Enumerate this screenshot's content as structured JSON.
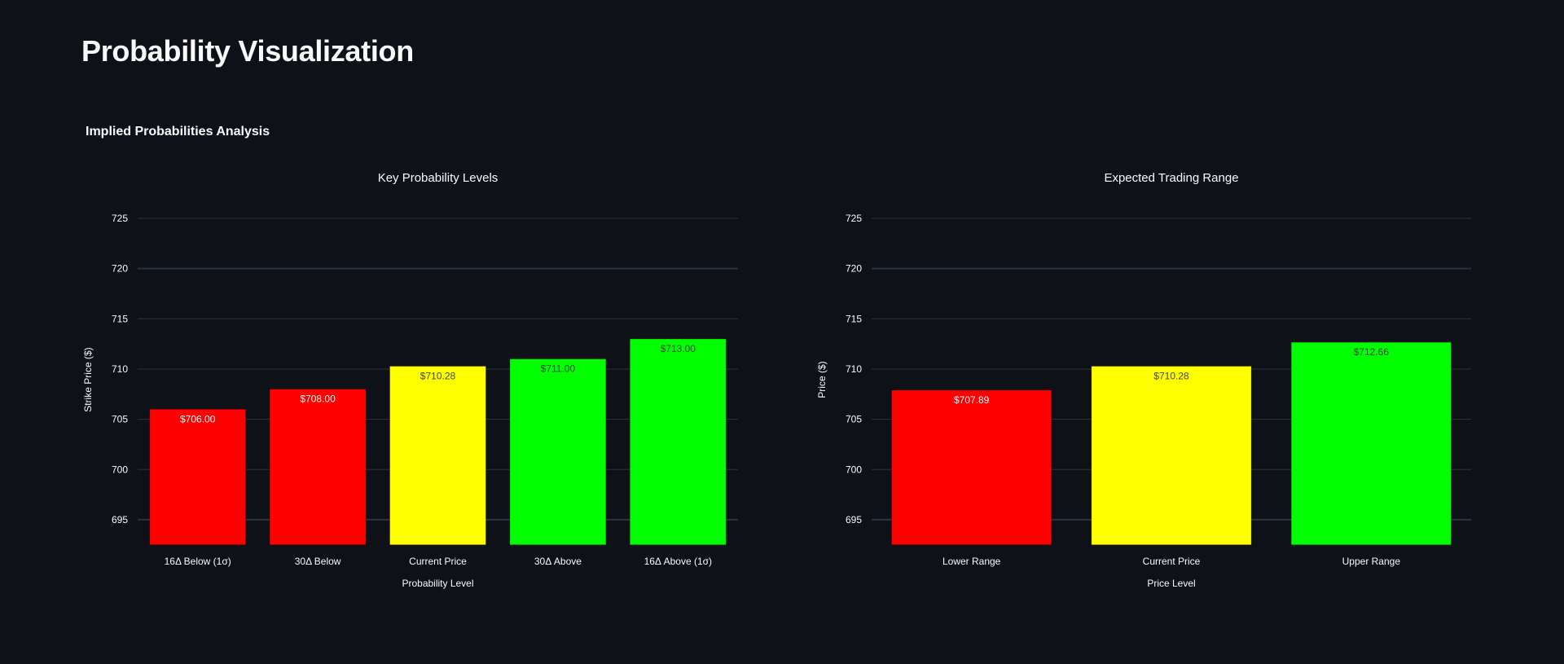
{
  "page": {
    "title": "Probability Visualization",
    "subheading": "Implied Probabilities Analysis"
  },
  "colors": {
    "background": "#0e1117",
    "grid": "#283442",
    "red": "#ff0000",
    "yellow": "#ffff00",
    "green": "#00ff00"
  },
  "chart_data": [
    {
      "type": "bar",
      "title": "Key Probability Levels",
      "xlabel": "Probability Level",
      "ylabel": "Strike Price ($)",
      "categories": [
        "16Δ Below (1σ)",
        "30Δ Below",
        "Current Price",
        "30Δ Above",
        "16Δ Above (1σ)"
      ],
      "values": [
        706.0,
        708.0,
        710.28,
        711.0,
        713.0
      ],
      "labels": [
        "$706.00",
        "$708.00",
        "$710.28",
        "$711.00",
        "$713.00"
      ],
      "colors": [
        "#ff0000",
        "#ff0000",
        "#ffff00",
        "#00ff00",
        "#00ff00"
      ],
      "yticks": [
        "695",
        "700",
        "705",
        "710",
        "715",
        "720",
        "725"
      ],
      "ylim": [
        692.5,
        727
      ],
      "grid": true,
      "legend": "none"
    },
    {
      "type": "bar",
      "title": "Expected Trading Range",
      "xlabel": "Price Level",
      "ylabel": "Price ($)",
      "categories": [
        "Lower Range",
        "Current Price",
        "Upper Range"
      ],
      "values": [
        707.89,
        710.28,
        712.66
      ],
      "labels": [
        "$707.89",
        "$710.28",
        "$712.66"
      ],
      "colors": [
        "#ff0000",
        "#ffff00",
        "#00ff00"
      ],
      "yticks": [
        "695",
        "700",
        "705",
        "710",
        "715",
        "720",
        "725"
      ],
      "ylim": [
        692.5,
        727
      ],
      "grid": true,
      "legend": "none"
    }
  ]
}
